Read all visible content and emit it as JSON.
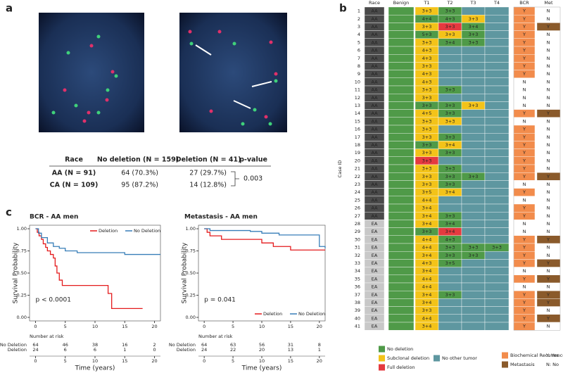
{
  "panel_a": {
    "label": "a",
    "table": {
      "header": [
        "Race",
        "No deletion (N = 159)",
        "Deletion (N = 41)",
        "p-value"
      ],
      "rows": [
        [
          "AA (N = 91)",
          "64 (70.3%)",
          "27 (29.7%)"
        ],
        [
          "CA (N = 109)",
          "95 (87.2%)",
          "14 (12.8%)"
        ]
      ],
      "p_value": "0.003"
    }
  },
  "panel_c": {
    "label": "c",
    "x_label": "Time (years)",
    "y_label": "Survival Probability",
    "risk_title": "Number at risk"
  },
  "chart_data": [
    {
      "type": "line",
      "title": "BCR - AA men",
      "annotation": "p < 0.0001",
      "legend": "top-right",
      "xlim": [
        -1,
        21
      ],
      "ylim": [
        -0.04,
        1.04
      ],
      "xticks": [
        0,
        5,
        10,
        15,
        20
      ],
      "yticks": [
        {
          "value": 0,
          "label": "0.00"
        },
        {
          "value": 0.25,
          "label": "0.25"
        },
        {
          "value": 0.5,
          "label": "0.50"
        },
        {
          "value": 0.75,
          "label": "0.75"
        },
        {
          "value": 1,
          "label": "1.00"
        }
      ],
      "series": [
        {
          "name": "Deletion",
          "color": "#e41a1c",
          "x": [
            0,
            0.3,
            0.6,
            1,
            1.3,
            1.7,
            2,
            2.5,
            3,
            3.3,
            3.6,
            4,
            4.5,
            12.2,
            12.8,
            18
          ],
          "values": [
            1,
            0.96,
            0.92,
            0.88,
            0.83,
            0.79,
            0.75,
            0.71,
            0.67,
            0.58,
            0.5,
            0.42,
            0.36,
            0.27,
            0.1,
            0.1
          ],
          "at_risk": [
            24,
            6,
            6,
            1,
            0
          ]
        },
        {
          "name": "No Deletion",
          "color": "#377eb8",
          "x": [
            0,
            0.5,
            1,
            2,
            3,
            4,
            5,
            7,
            15,
            21
          ],
          "values": [
            1,
            0.95,
            0.9,
            0.84,
            0.8,
            0.78,
            0.75,
            0.73,
            0.71,
            0.71
          ],
          "at_risk": [
            64,
            46,
            38,
            16,
            2
          ]
        }
      ]
    },
    {
      "type": "line",
      "title": "Metastasis - AA men",
      "annotation": "p = 0.041",
      "legend": "bottom-right",
      "xlim": [
        -1,
        21
      ],
      "ylim": [
        -0.04,
        1.04
      ],
      "xticks": [
        0,
        5,
        10,
        15,
        20
      ],
      "yticks": [
        {
          "value": 0,
          "label": "0.00"
        },
        {
          "value": 0.25,
          "label": "0.25"
        },
        {
          "value": 0.5,
          "label": "0.50"
        },
        {
          "value": 0.75,
          "label": "0.75"
        },
        {
          "value": 1,
          "label": "1.00"
        }
      ],
      "series": [
        {
          "name": "Deletion",
          "color": "#e41a1c",
          "x": [
            0,
            0.5,
            1,
            3,
            10,
            12,
            15,
            21
          ],
          "values": [
            1,
            0.96,
            0.92,
            0.88,
            0.84,
            0.8,
            0.76,
            0.76
          ],
          "at_risk": [
            24,
            22,
            20,
            13,
            1
          ]
        },
        {
          "name": "No Deletion",
          "color": "#377eb8",
          "x": [
            0,
            1,
            8,
            10,
            13,
            20,
            21
          ],
          "values": [
            1,
            0.98,
            0.97,
            0.95,
            0.93,
            0.8,
            0.78
          ],
          "at_risk": [
            64,
            63,
            56,
            31,
            8
          ]
        }
      ]
    }
  ],
  "panel_b": {
    "label": "b",
    "y_label": "Case ID",
    "columns": [
      "Race",
      "Benign",
      "T1",
      "T2",
      "T3",
      "T4",
      "BCR",
      "Met"
    ],
    "race_colors": {
      "AA": "#4a4a4a",
      "EA": "#c8c8c8"
    },
    "legend": [
      {
        "label": "No deletion",
        "color": "#4f9a48"
      },
      {
        "label": "Subclonal deletion",
        "color": "#f3c319"
      },
      {
        "label": "Full deletion",
        "color": "#e53a3f"
      },
      {
        "label": "No other tumor",
        "color": "#5e97a0"
      },
      {
        "label": "Biochemical Recurrence",
        "color": "#f28c4c"
      },
      {
        "label": "Metastasis",
        "color": "#8a5a2b"
      }
    ],
    "yn_legend": [
      "Y: Yes",
      "N: No"
    ],
    "rows": [
      {
        "id": "1",
        "race": "AA",
        "grades": [
          "3+3",
          "3+3"
        ],
        "fills": [
          "#f3c319",
          "#4f9a48"
        ],
        "bcr": "Y",
        "met": "N"
      },
      {
        "id": "2",
        "race": "AA",
        "grades": [
          "4+4",
          "4+3",
          "3+3"
        ],
        "fills": [
          "#4f9a48",
          "#4f9a48",
          "#f3c319"
        ],
        "bcr": "Y",
        "met": "N"
      },
      {
        "id": "3",
        "race": "AA",
        "grades": [
          "3+3",
          "3+3",
          "3+4"
        ],
        "fills": [
          "#f3c319",
          "#e53a3f",
          "#4f9a48"
        ],
        "bcr": "Y",
        "met": "Y"
      },
      {
        "id": "4",
        "race": "AA",
        "grades": [
          "5+3",
          "3+3",
          "3+3"
        ],
        "fills": [
          "#4f9a48",
          "#f3c319",
          "#4f9a48"
        ],
        "bcr": "Y",
        "met": "N"
      },
      {
        "id": "5",
        "race": "AA",
        "grades": [
          "3+3",
          "3+4",
          "3+3"
        ],
        "fills": [
          "#f3c319",
          "#4f9a48",
          "#4f9a48"
        ],
        "bcr": "Y",
        "met": "N"
      },
      {
        "id": "6",
        "race": "AA",
        "grades": [
          "4+3"
        ],
        "fills": [
          "#f3c319"
        ],
        "bcr": "Y",
        "met": "N"
      },
      {
        "id": "7",
        "race": "AA",
        "grades": [
          "4+3"
        ],
        "fills": [
          "#f3c319"
        ],
        "bcr": "Y",
        "met": "N"
      },
      {
        "id": "8",
        "race": "AA",
        "grades": [
          "3+3"
        ],
        "fills": [
          "#f3c319"
        ],
        "bcr": "Y",
        "met": "N"
      },
      {
        "id": "9",
        "race": "AA",
        "grades": [
          "4+3"
        ],
        "fills": [
          "#f3c319"
        ],
        "bcr": "Y",
        "met": "N"
      },
      {
        "id": "10",
        "race": "AA",
        "grades": [
          "4+3"
        ],
        "fills": [
          "#f3c319"
        ],
        "bcr": "N",
        "met": "N"
      },
      {
        "id": "11",
        "race": "AA",
        "grades": [
          "3+3",
          "3+3"
        ],
        "fills": [
          "#f3c319",
          "#4f9a48"
        ],
        "bcr": "N",
        "met": "N"
      },
      {
        "id": "12",
        "race": "AA",
        "grades": [
          "3+3"
        ],
        "fills": [
          "#f3c319"
        ],
        "bcr": "N",
        "met": "N"
      },
      {
        "id": "13",
        "race": "AA",
        "grades": [
          "3+3",
          "3+3",
          "3+3"
        ],
        "fills": [
          "#4f9a48",
          "#4f9a48",
          "#f3c319"
        ],
        "bcr": "N",
        "met": "N"
      },
      {
        "id": "14",
        "race": "AA",
        "grades": [
          "4+5",
          "3+3"
        ],
        "fills": [
          "#f3c319",
          "#4f9a48"
        ],
        "bcr": "Y",
        "met": "Y"
      },
      {
        "id": "15",
        "race": "AA",
        "grades": [
          "3+3",
          "3+3"
        ],
        "fills": [
          "#f3c319",
          "#f3c319"
        ],
        "bcr": "N",
        "met": "N"
      },
      {
        "id": "16",
        "race": "AA",
        "grades": [
          "3+3"
        ],
        "fills": [
          "#f3c319"
        ],
        "bcr": "Y",
        "met": "N"
      },
      {
        "id": "17",
        "race": "AA",
        "grades": [
          "3+3",
          "3+3"
        ],
        "fills": [
          "#f3c319",
          "#4f9a48"
        ],
        "bcr": "Y",
        "met": "N"
      },
      {
        "id": "18",
        "race": "AA",
        "grades": [
          "3+3",
          "3+4"
        ],
        "fills": [
          "#4f9a48",
          "#f3c319"
        ],
        "bcr": "Y",
        "met": "N"
      },
      {
        "id": "19",
        "race": "AA",
        "grades": [
          "3+3",
          "3+3"
        ],
        "fills": [
          "#f3c319",
          "#4f9a48"
        ],
        "bcr": "Y",
        "met": "N"
      },
      {
        "id": "20",
        "race": "AA",
        "grades": [
          "3+3"
        ],
        "fills": [
          "#e53a3f"
        ],
        "bcr": "Y",
        "met": "N"
      },
      {
        "id": "21",
        "race": "AA",
        "grades": [
          "3+3",
          "3+3"
        ],
        "fills": [
          "#f3c319",
          "#4f9a48"
        ],
        "bcr": "Y",
        "met": "N"
      },
      {
        "id": "22",
        "race": "AA",
        "grades": [
          "3+3",
          "3+3",
          "3+3"
        ],
        "fills": [
          "#f3c319",
          "#4f9a48",
          "#4f9a48"
        ],
        "bcr": "Y",
        "met": "Y"
      },
      {
        "id": "23",
        "race": "AA",
        "grades": [
          "3+3",
          "3+3"
        ],
        "fills": [
          "#f3c319",
          "#4f9a48"
        ],
        "bcr": "N",
        "met": "N"
      },
      {
        "id": "24",
        "race": "AA",
        "grades": [
          "3+5",
          "3+4"
        ],
        "fills": [
          "#f3c319",
          "#f3c319"
        ],
        "bcr": "Y",
        "met": "N"
      },
      {
        "id": "25",
        "race": "AA",
        "grades": [
          "4+4"
        ],
        "fills": [
          "#f3c319"
        ],
        "bcr": "N",
        "met": "N"
      },
      {
        "id": "26",
        "race": "AA",
        "grades": [
          "3+4"
        ],
        "fills": [
          "#f3c319"
        ],
        "bcr": "Y",
        "met": "N"
      },
      {
        "id": "27",
        "race": "AA",
        "grades": [
          "3+4",
          "3+3"
        ],
        "fills": [
          "#f3c319",
          "#4f9a48"
        ],
        "bcr": "Y",
        "met": "N"
      },
      {
        "id": "28",
        "race": "EA",
        "grades": [
          "3+4",
          "3+4"
        ],
        "fills": [
          "#f3c319",
          "#4f9a48"
        ],
        "bcr": "N",
        "met": "N"
      },
      {
        "id": "29",
        "race": "EA",
        "grades": [
          "3+3",
          "3+4"
        ],
        "fills": [
          "#4f9a48",
          "#e53a3f"
        ],
        "bcr": "N",
        "met": "N"
      },
      {
        "id": "30",
        "race": "EA",
        "grades": [
          "4+4",
          "4+3"
        ],
        "fills": [
          "#f3c319",
          "#4f9a48"
        ],
        "bcr": "Y",
        "met": "Y"
      },
      {
        "id": "31",
        "race": "EA",
        "grades": [
          "4+4",
          "3+3",
          "3+3",
          "3+3"
        ],
        "fills": [
          "#f3c319",
          "#4f9a48",
          "#4f9a48",
          "#4f9a48"
        ],
        "bcr": "Y",
        "met": "N"
      },
      {
        "id": "32",
        "race": "EA",
        "grades": [
          "3+4",
          "3+3",
          "3+3"
        ],
        "fills": [
          "#f3c319",
          "#4f9a48",
          "#4f9a48"
        ],
        "bcr": "Y",
        "met": "N"
      },
      {
        "id": "33",
        "race": "EA",
        "grades": [
          "4+3",
          "3+5"
        ],
        "fills": [
          "#f3c319",
          "#4f9a48"
        ],
        "bcr": "Y",
        "met": "Y"
      },
      {
        "id": "34",
        "race": "EA",
        "grades": [
          "3+4"
        ],
        "fills": [
          "#f3c319"
        ],
        "bcr": "N",
        "met": "N"
      },
      {
        "id": "35",
        "race": "EA",
        "grades": [
          "4+4"
        ],
        "fills": [
          "#f3c319"
        ],
        "bcr": "Y",
        "met": "Y"
      },
      {
        "id": "36",
        "race": "EA",
        "grades": [
          "4+4"
        ],
        "fills": [
          "#f3c319"
        ],
        "bcr": "N",
        "met": "N"
      },
      {
        "id": "37",
        "race": "EA",
        "grades": [
          "3+4",
          "3+3"
        ],
        "fills": [
          "#f3c319",
          "#4f9a48"
        ],
        "bcr": "Y",
        "met": "Y"
      },
      {
        "id": "38",
        "race": "EA",
        "grades": [
          "3+4"
        ],
        "fills": [
          "#f3c319"
        ],
        "bcr": "Y",
        "met": "Y"
      },
      {
        "id": "39",
        "race": "EA",
        "grades": [
          "3+3"
        ],
        "fills": [
          "#f3c319"
        ],
        "bcr": "Y",
        "met": "N"
      },
      {
        "id": "40",
        "race": "EA",
        "grades": [
          "4+4"
        ],
        "fills": [
          "#f3c319"
        ],
        "bcr": "Y",
        "met": "Y"
      },
      {
        "id": "41",
        "race": "EA",
        "grades": [
          "3+4"
        ],
        "fills": [
          "#f3c319"
        ],
        "bcr": "Y",
        "met": "N"
      }
    ]
  }
}
